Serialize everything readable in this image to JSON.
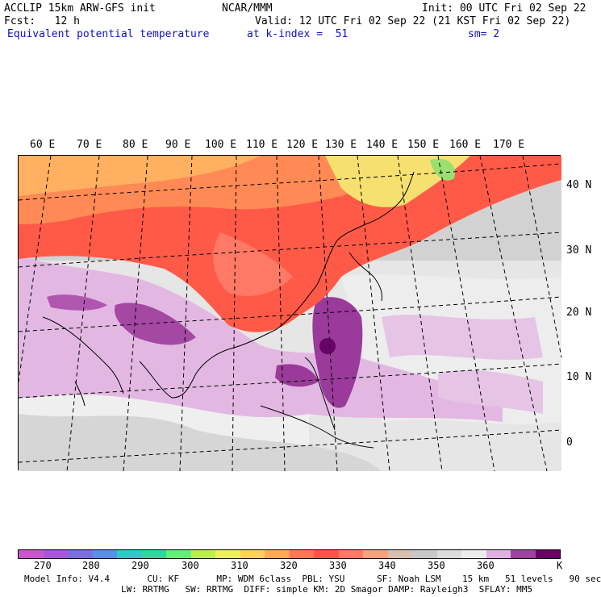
{
  "header": {
    "line1_left": "ACCLIP 15km ARW-GFS init",
    "line1_center": "NCAR/MMM",
    "line1_right": "Init: 00 UTC Fri 02 Sep 22",
    "line2_left": "Fcst:   12 h",
    "line2_right": "Valid: 12 UTC Fri 02 Sep 22 (21 KST Fri 02 Sep 22)",
    "line3_left": "Equivalent potential temperature",
    "line3_center": "at k-index =  51",
    "line3_right": "sm= 2"
  },
  "map": {
    "lon_labels": [
      "60 E",
      "70 E",
      "80 E",
      "90 E",
      "100 E",
      "110 E",
      "120 E",
      "130 E",
      "140 E",
      "150 E",
      "160 E",
      "170 E"
    ],
    "lat_labels": [
      "40 N",
      "30 N",
      "20 N",
      "10 N",
      "0"
    ]
  },
  "colorbar": {
    "colors": [
      "#cc55cc",
      "#aa55dd",
      "#7b6fe0",
      "#5b8fe8",
      "#30c8c8",
      "#33d6a0",
      "#66ee77",
      "#bbee55",
      "#eeee66",
      "#ffd060",
      "#ffaa55",
      "#ff7755",
      "#ff5544",
      "#ff7a66",
      "#f5a37a",
      "#d8c0b0",
      "#c8c8c8",
      "#dcdcdc",
      "#ececec",
      "#e0b0e0",
      "#a040a0",
      "#6a006a"
    ],
    "labels": [
      "270",
      "280",
      "290",
      "300",
      "310",
      "320",
      "330",
      "340",
      "350",
      "360"
    ],
    "unit": "K"
  },
  "footer": {
    "line1": "Model Info: V4.4       CU: KF       MP: WDM 6class  PBL: YSU      SF: Noah LSM    15 km   51 levels   90 sec",
    "line2": "LW: RRTMG   SW: RRTMG  DIFF: simple KM: 2D Smagor DAMP: Rayleigh3  SFLAY: MM5"
  }
}
